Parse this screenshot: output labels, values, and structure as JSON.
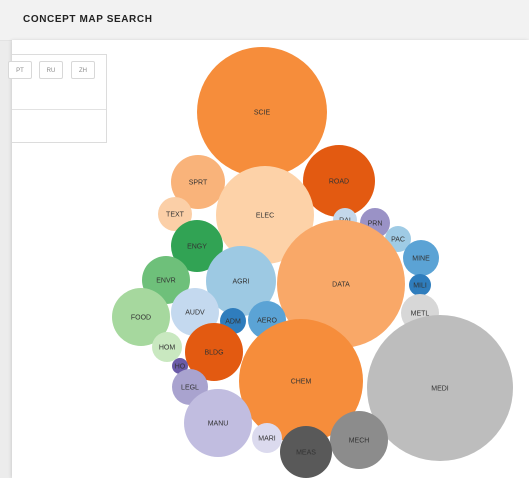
{
  "header": {
    "title": "CONCEPT MAP SEARCH"
  },
  "languages": [
    {
      "code": "PT"
    },
    {
      "code": "RU"
    },
    {
      "code": "ZH"
    }
  ],
  "bubbles": [
    {
      "label": "SCIE",
      "color": "#f68d3b",
      "size": 65
    },
    {
      "label": "ROAD",
      "color": "#e35a11",
      "size": 36
    },
    {
      "label": "SPRT",
      "color": "#f9b37a",
      "size": 27
    },
    {
      "label": "ELEC",
      "color": "#fdd2a8",
      "size": 49
    },
    {
      "label": "TEXT",
      "color": "#fbcfa7",
      "size": 17
    },
    {
      "label": "RAI",
      "color": "#c4d7ea",
      "size": 12
    },
    {
      "label": "PRN",
      "color": "#9a92c6",
      "size": 15
    },
    {
      "label": "PAC",
      "color": "#9fcbe5",
      "size": 13
    },
    {
      "label": "ENGY",
      "color": "#31a354",
      "size": 26
    },
    {
      "label": "DATA",
      "color": "#f9a868",
      "size": 64
    },
    {
      "label": "MINE",
      "color": "#5ba3d5",
      "size": 18
    },
    {
      "label": "ENVR",
      "color": "#6ec07a",
      "size": 24
    },
    {
      "label": "AGRI",
      "color": "#9dc9e3",
      "size": 35
    },
    {
      "label": "MILI",
      "color": "#2f7dbd",
      "size": 11
    },
    {
      "label": "FOOD",
      "color": "#a6d89e",
      "size": 29
    },
    {
      "label": "AUDV",
      "color": "#c4d9ef",
      "size": 24
    },
    {
      "label": "ADM",
      "color": "#2f7dbd",
      "size": 13
    },
    {
      "label": "AERO",
      "color": "#5ba3d5",
      "size": 19
    },
    {
      "label": "METL",
      "color": "#d7d7d7",
      "size": 19
    },
    {
      "label": "HOM",
      "color": "#c9e8c0",
      "size": 15
    },
    {
      "label": "BLDG",
      "color": "#e35a11",
      "size": 29
    },
    {
      "label": "HO",
      "color": "#6a5aa7",
      "size": 8
    },
    {
      "label": "CHEM",
      "color": "#f68d3b",
      "size": 62
    },
    {
      "label": "MEDI",
      "color": "#bdbdbd",
      "size": 73
    },
    {
      "label": "LEGL",
      "color": "#a9a3cf",
      "size": 18
    },
    {
      "label": "MANU",
      "color": "#c1bde0",
      "size": 34
    },
    {
      "label": "MARI",
      "color": "#dbdaee",
      "size": 15
    },
    {
      "label": "MECH",
      "color": "#8c8c8c",
      "size": 29
    },
    {
      "label": "MEAS",
      "color": "#595959",
      "size": 26
    }
  ]
}
